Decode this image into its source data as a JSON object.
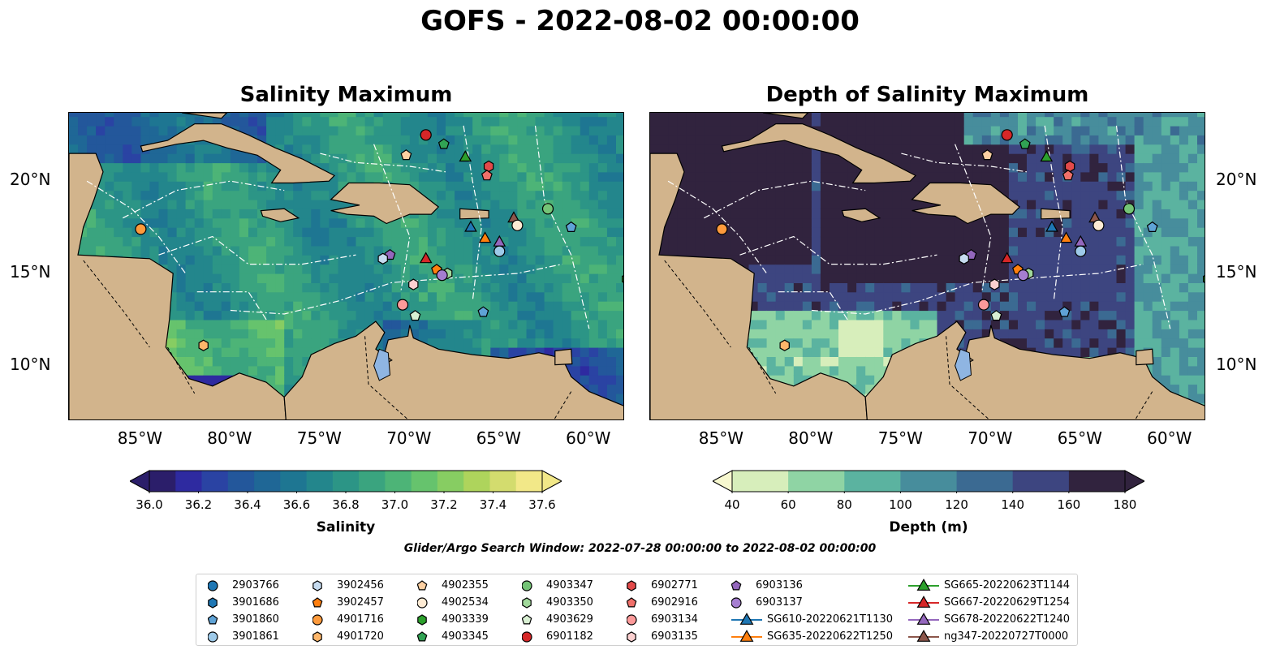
{
  "title": "GOFS - 2022-08-02 00:00:00",
  "panels": [
    {
      "title": "Salinity Maximum"
    },
    {
      "title": "Depth of Salinity Maximum"
    }
  ],
  "lon_ticks": [
    "85°W",
    "80°W",
    "75°W",
    "70°W",
    "65°W",
    "60°W"
  ],
  "lat_ticks": [
    "20°N",
    "15°N",
    "10°N"
  ],
  "colorbars": [
    {
      "label": "Salinity",
      "ticks": [
        "36.0",
        "36.2",
        "36.4",
        "36.6",
        "36.8",
        "37.0",
        "37.2",
        "37.4",
        "37.6"
      ],
      "colors": [
        "#2b1e6a",
        "#2e2aa0",
        "#2a43a3",
        "#23579b",
        "#1f6796",
        "#1e7692",
        "#23868c",
        "#2c9586",
        "#3aa47f",
        "#4db477",
        "#66c36d",
        "#87cd62",
        "#aed45c",
        "#d3dc6e",
        "#f2e888"
      ]
    },
    {
      "label": "Depth (m)",
      "ticks": [
        "40",
        "60",
        "80",
        "100",
        "120",
        "140",
        "160",
        "180"
      ],
      "colors": [
        "#d7eebb",
        "#8fd4a4",
        "#5bb3a0",
        "#478d9c",
        "#3b6a92",
        "#3d4580",
        "#31233e"
      ]
    }
  ],
  "search_window": "Glider/Argo Search Window: 2022-07-28 00:00:00 to 2022-08-02 00:00:00",
  "land_color": "#d2b48c",
  "legend": [
    {
      "label": "2903766",
      "marker": "circle",
      "color": "#1f77b4"
    },
    {
      "label": "3901686",
      "marker": "hexagon",
      "color": "#1f77b4"
    },
    {
      "label": "3901860",
      "marker": "pentagon",
      "color": "#5fa3d6"
    },
    {
      "label": "3901861",
      "marker": "circle",
      "color": "#9ecae9"
    },
    {
      "label": "3902456",
      "marker": "hexagon",
      "color": "#c6dbef"
    },
    {
      "label": "3902457",
      "marker": "pentagon",
      "color": "#ff7f0e"
    },
    {
      "label": "4901716",
      "marker": "circle",
      "color": "#fd9a3c"
    },
    {
      "label": "4901720",
      "marker": "hexagon",
      "color": "#fdb66a"
    },
    {
      "label": "4902355",
      "marker": "pentagon",
      "color": "#fdd0a2"
    },
    {
      "label": "4902534",
      "marker": "circle",
      "color": "#feebd4"
    },
    {
      "label": "4903339",
      "marker": "hexagon",
      "color": "#2ca02c"
    },
    {
      "label": "4903345",
      "marker": "pentagon",
      "color": "#31a354"
    },
    {
      "label": "4903347",
      "marker": "circle",
      "color": "#74c476"
    },
    {
      "label": "4903350",
      "marker": "hexagon",
      "color": "#a1d99b"
    },
    {
      "label": "4903629",
      "marker": "pentagon",
      "color": "#d9f0d3"
    },
    {
      "label": "6901182",
      "marker": "circle",
      "color": "#d62728"
    },
    {
      "label": "6902771",
      "marker": "hexagon",
      "color": "#e34a4a"
    },
    {
      "label": "6902916",
      "marker": "pentagon",
      "color": "#f0706a"
    },
    {
      "label": "6903134",
      "marker": "circle",
      "color": "#fc9a9a"
    },
    {
      "label": "6903135",
      "marker": "hexagon",
      "color": "#fcd0d0"
    },
    {
      "label": "6903136",
      "marker": "pentagon",
      "color": "#9467bd"
    },
    {
      "label": "6903137",
      "marker": "circle",
      "color": "#a57ed0"
    },
    {
      "label": "SG610-20220621T1130",
      "marker": "triangle",
      "color": "#1f77b4"
    },
    {
      "label": "SG635-20220622T1250",
      "marker": "triangle",
      "color": "#ff7f0e"
    },
    {
      "label": "SG665-20220623T1144",
      "marker": "triangle",
      "color": "#2ca02c"
    },
    {
      "label": "SG667-20220629T1254",
      "marker": "triangle",
      "color": "#d62728"
    },
    {
      "label": "SG678-20220622T1240",
      "marker": "triangle",
      "color": "#9467bd"
    },
    {
      "label": "ng347-20220727T0000",
      "marker": "triangle",
      "color": "#8c564b"
    }
  ],
  "map_data": {
    "lon_range": [
      -89,
      -58
    ],
    "lat_range": [
      7,
      23.7
    ],
    "observations": [
      {
        "id": "6901182",
        "lon": -69.1,
        "lat": 22.5
      },
      {
        "id": "4903345",
        "lon": -68.1,
        "lat": 22.0
      },
      {
        "id": "4902355",
        "lon": -70.2,
        "lat": 21.4
      },
      {
        "id": "SG665-20220623T1144",
        "lon": -66.9,
        "lat": 21.3
      },
      {
        "id": "6902771",
        "lon": -65.6,
        "lat": 20.8
      },
      {
        "id": "6902916",
        "lon": -65.7,
        "lat": 20.3
      },
      {
        "id": "4903347",
        "lon": -62.3,
        "lat": 18.5
      },
      {
        "id": "ng347-20220727T0000",
        "lon": -64.2,
        "lat": 18.0
      },
      {
        "id": "4902534",
        "lon": -64.0,
        "lat": 17.6
      },
      {
        "id": "SG610-20220621T1130",
        "lon": -66.6,
        "lat": 17.5
      },
      {
        "id": "3901860",
        "lon": -61.0,
        "lat": 17.5
      },
      {
        "id": "SG635-20220622T1250",
        "lon": -65.8,
        "lat": 16.9
      },
      {
        "id": "SG678-20220622T1240",
        "lon": -65.0,
        "lat": 16.7
      },
      {
        "id": "3901861",
        "lon": -65.0,
        "lat": 16.2
      },
      {
        "id": "4901716",
        "lon": -85.0,
        "lat": 17.4
      },
      {
        "id": "6903136",
        "lon": -71.1,
        "lat": 16.0
      },
      {
        "id": "3902456",
        "lon": -71.5,
        "lat": 15.8
      },
      {
        "id": "SG667-20220629T1254",
        "lon": -69.1,
        "lat": 15.8
      },
      {
        "id": "3902457",
        "lon": -68.5,
        "lat": 15.2
      },
      {
        "id": "4903350",
        "lon": -67.9,
        "lat": 15.0
      },
      {
        "id": "6903137",
        "lon": -68.2,
        "lat": 14.9
      },
      {
        "id": "6903135",
        "lon": -69.8,
        "lat": 14.4
      },
      {
        "id": "6903134",
        "lon": -70.4,
        "lat": 13.3
      },
      {
        "id": "4903629",
        "lon": -69.7,
        "lat": 12.7
      },
      {
        "id": "3901860",
        "lon": -65.9,
        "lat": 12.9
      },
      {
        "id": "4901720",
        "lon": -81.5,
        "lat": 11.1
      },
      {
        "id": "4903339",
        "lon": -57.9,
        "lat": 14.7
      }
    ]
  }
}
